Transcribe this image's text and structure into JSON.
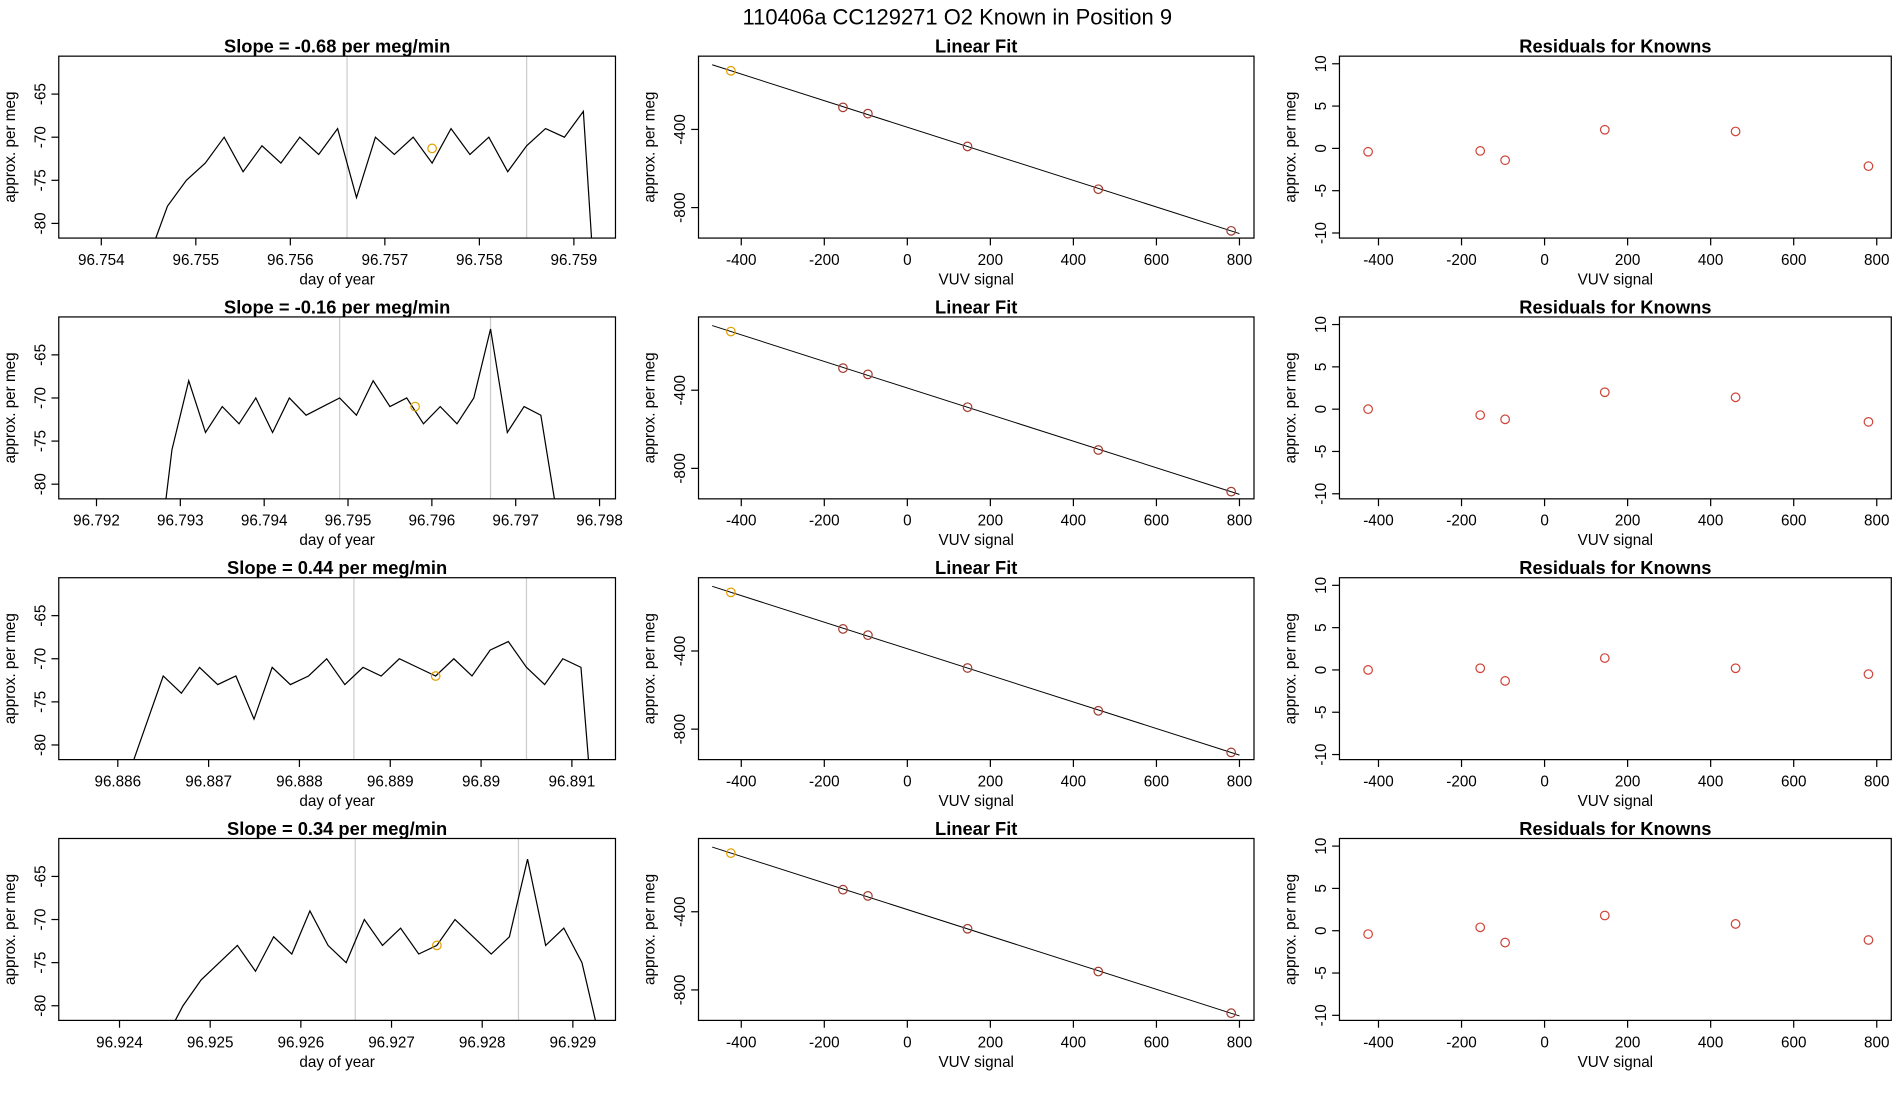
{
  "title": "110406a      CC129271    O2 Known in Position  9",
  "chart_data": [
    {
      "type": "line",
      "title": "Slope =  -0.68  per meg/min",
      "xlabel": "day of year",
      "ylabel": "approx. per meg",
      "x": [
        96.7545,
        96.7547,
        96.7549,
        96.7551,
        96.7553,
        96.7555,
        96.7557,
        96.7559,
        96.7561,
        96.7563,
        96.7565,
        96.7567,
        96.7569,
        96.7571,
        96.7573,
        96.7575,
        96.7577,
        96.7579,
        96.7581,
        96.7583,
        96.7585,
        96.7587,
        96.7589,
        96.7591,
        96.7592
      ],
      "values": [
        -84,
        -78,
        -75,
        -73,
        -70,
        -74,
        -71,
        -73,
        -70,
        -72,
        -69,
        -77,
        -70,
        -72,
        -70,
        -73,
        -69,
        -72,
        -70,
        -74,
        -71,
        -69,
        -70,
        -67,
        -84
      ],
      "color": "#000000",
      "xlim": [
        96.75355,
        96.75944
      ],
      "xticks": [
        96.754,
        96.755,
        96.756,
        96.757,
        96.758,
        96.759
      ],
      "ylim": [
        -81.7,
        -60.6
      ],
      "yticks": [
        -80,
        -75,
        -70,
        -65
      ],
      "vlines": [
        96.7566,
        96.7585
      ],
      "vline_color": "#cccccc",
      "highlight": {
        "x": 96.7575,
        "y": -71.3,
        "color": "#e69f00"
      }
    },
    {
      "type": "scatter",
      "title": "Linear Fit",
      "xlabel": "VUV signal",
      "ylabel": "approx. per meg",
      "x": [
        -425,
        -155,
        -95,
        145,
        460,
        780
      ],
      "values": [
        -100,
        -287,
        -319,
        -487,
        -706,
        -919
      ],
      "colors": [
        "#e69f00",
        "#a33b2f",
        "#a33b2f",
        "#a33b2f",
        "#a33b2f",
        "#a33b2f"
      ],
      "fit_line": {
        "x": [
          -470,
          800
        ],
        "y": [
          -69,
          -933
        ]
      },
      "xlim": [
        -503,
        835
      ],
      "xticks": [
        -400,
        -200,
        0,
        200,
        400,
        600,
        800
      ],
      "ylim": [
        -956,
        -25
      ],
      "yticks": [
        -800,
        -400
      ]
    },
    {
      "type": "scatter",
      "title": "Residuals for Knowns",
      "xlabel": "VUV signal",
      "ylabel": "approx. per meg",
      "x": [
        -425,
        -155,
        -95,
        145,
        460,
        780
      ],
      "values": [
        -0.4,
        -0.3,
        -1.4,
        2.2,
        2.0,
        -2.1
      ],
      "color": "#d0453a",
      "xlim": [
        -494,
        835
      ],
      "xticks": [
        -400,
        -200,
        0,
        200,
        400,
        600,
        800
      ],
      "ylim": [
        -10.6,
        10.9
      ],
      "yticks": [
        -10,
        -5,
        0,
        5,
        10
      ]
    },
    {
      "type": "line",
      "title": "Slope =  -0.16  per meg/min",
      "xlabel": "day of year",
      "ylabel": "approx. per meg",
      "x": [
        96.7928,
        96.7929,
        96.7931,
        96.7933,
        96.7935,
        96.7937,
        96.7939,
        96.7941,
        96.7943,
        96.7945,
        96.7947,
        96.7949,
        96.7951,
        96.7953,
        96.7955,
        96.7957,
        96.7959,
        96.7961,
        96.7963,
        96.7965,
        96.7967,
        96.7969,
        96.7971,
        96.7973,
        96.7975
      ],
      "values": [
        -84,
        -76,
        -68,
        -74,
        -71,
        -73,
        -70,
        -74,
        -70,
        -72,
        -71,
        -70,
        -72,
        -68,
        -71,
        -70,
        -73,
        -71,
        -73,
        -70,
        -62,
        -74,
        -71,
        -72,
        -84
      ],
      "color": "#000000",
      "xlim": [
        96.79155,
        96.79819
      ],
      "xticks": [
        96.792,
        96.793,
        96.794,
        96.795,
        96.796,
        96.797,
        96.798
      ],
      "ylim": [
        -81.7,
        -60.6
      ],
      "yticks": [
        -80,
        -75,
        -70,
        -65
      ],
      "vlines": [
        96.7949,
        96.7967
      ],
      "vline_color": "#cccccc",
      "highlight": {
        "x": 96.7958,
        "y": -71,
        "color": "#e69f00"
      }
    },
    {
      "type": "scatter",
      "title": "Linear Fit",
      "xlabel": "VUV signal",
      "ylabel": "approx. per meg",
      "x": [
        -425,
        -155,
        -95,
        145,
        460,
        780
      ],
      "values": [
        -100,
        -287,
        -319,
        -487,
        -706,
        -919
      ],
      "colors": [
        "#e69f00",
        "#a33b2f",
        "#a33b2f",
        "#a33b2f",
        "#a33b2f",
        "#a33b2f"
      ],
      "fit_line": {
        "x": [
          -470,
          800
        ],
        "y": [
          -69,
          -933
        ]
      },
      "xlim": [
        -503,
        835
      ],
      "xticks": [
        -400,
        -200,
        0,
        200,
        400,
        600,
        800
      ],
      "ylim": [
        -956,
        -25
      ],
      "yticks": [
        -800,
        -400
      ]
    },
    {
      "type": "scatter",
      "title": "Residuals for Knowns",
      "xlabel": "VUV signal",
      "ylabel": "approx. per meg",
      "x": [
        -425,
        -155,
        -95,
        145,
        460,
        780
      ],
      "values": [
        0,
        -0.7,
        -1.2,
        2.0,
        1.4,
        -1.5
      ],
      "color": "#d0453a",
      "xlim": [
        -494,
        835
      ],
      "xticks": [
        -400,
        -200,
        0,
        200,
        400,
        600,
        800
      ],
      "ylim": [
        -10.6,
        10.9
      ],
      "yticks": [
        -10,
        -5,
        0,
        5,
        10
      ]
    },
    {
      "type": "line",
      "title": "Slope =  0.44  per meg/min",
      "xlabel": "day of year",
      "ylabel": "approx. per meg",
      "x": [
        96.8861,
        96.8863,
        96.8865,
        96.8867,
        96.8869,
        96.8871,
        96.8873,
        96.8875,
        96.8877,
        96.8879,
        96.8881,
        96.8883,
        96.8885,
        96.8887,
        96.8889,
        96.8891,
        96.8893,
        96.8895,
        96.8897,
        96.8899,
        96.8901,
        96.8903,
        96.8905,
        96.8907,
        96.8909,
        96.8911,
        96.8912
      ],
      "values": [
        -84,
        -78,
        -72,
        -74,
        -71,
        -73,
        -72,
        -77,
        -71,
        -73,
        -72,
        -70,
        -73,
        -71,
        -72,
        -70,
        -71,
        -72,
        -70,
        -72,
        -69,
        -68,
        -71,
        -73,
        -70,
        -71,
        -84
      ],
      "color": "#000000",
      "xlim": [
        96.88535,
        96.89148
      ],
      "xticks": [
        96.886,
        96.887,
        96.888,
        96.889,
        96.89,
        96.891
      ],
      "ylim": [
        -81.7,
        -60.6
      ],
      "yticks": [
        -80,
        -75,
        -70,
        -65
      ],
      "vlines": [
        96.8886,
        96.8905
      ],
      "vline_color": "#cccccc",
      "highlight": {
        "x": 96.8895,
        "y": -72,
        "color": "#e69f00"
      }
    },
    {
      "type": "scatter",
      "title": "Linear Fit",
      "xlabel": "VUV signal",
      "ylabel": "approx. per meg",
      "x": [
        -425,
        -155,
        -95,
        145,
        460,
        780
      ],
      "values": [
        -100,
        -287,
        -319,
        -487,
        -706,
        -919
      ],
      "colors": [
        "#e69f00",
        "#a33b2f",
        "#a33b2f",
        "#a33b2f",
        "#a33b2f",
        "#a33b2f"
      ],
      "fit_line": {
        "x": [
          -470,
          800
        ],
        "y": [
          -69,
          -933
        ]
      },
      "xlim": [
        -503,
        835
      ],
      "xticks": [
        -400,
        -200,
        0,
        200,
        400,
        600,
        800
      ],
      "ylim": [
        -956,
        -25
      ],
      "yticks": [
        -800,
        -400
      ]
    },
    {
      "type": "scatter",
      "title": "Residuals for Knowns",
      "xlabel": "VUV signal",
      "ylabel": "approx. per meg",
      "x": [
        -425,
        -155,
        -95,
        145,
        460,
        780
      ],
      "values": [
        0,
        0.2,
        -1.3,
        1.4,
        0.2,
        -0.5
      ],
      "color": "#d0453a",
      "xlim": [
        -494,
        835
      ],
      "xticks": [
        -400,
        -200,
        0,
        200,
        400,
        600,
        800
      ],
      "ylim": [
        -10.6,
        10.9
      ],
      "yticks": [
        -10,
        -5,
        0,
        5,
        10
      ]
    },
    {
      "type": "line",
      "title": "Slope =  0.34  per meg/min",
      "xlabel": "day of year",
      "ylabel": "approx. per meg",
      "x": [
        96.9245,
        96.9247,
        96.9249,
        96.9251,
        96.9253,
        96.9255,
        96.9257,
        96.9259,
        96.9261,
        96.9263,
        96.9265,
        96.9267,
        96.9269,
        96.9271,
        96.9273,
        96.9275,
        96.9277,
        96.9279,
        96.9281,
        96.9283,
        96.9285,
        96.9287,
        96.9289,
        96.9291,
        96.9293
      ],
      "values": [
        -84,
        -80,
        -77,
        -75,
        -73,
        -76,
        -72,
        -74,
        -69,
        -73,
        -75,
        -70,
        -73,
        -71,
        -74,
        -73,
        -70,
        -72,
        -74,
        -72,
        -63,
        -73,
        -71,
        -75,
        -84
      ],
      "color": "#000000",
      "xlim": [
        96.92333,
        96.92947
      ],
      "xticks": [
        96.924,
        96.925,
        96.926,
        96.927,
        96.928,
        96.929
      ],
      "ylim": [
        -81.7,
        -60.6
      ],
      "yticks": [
        -80,
        -75,
        -70,
        -65
      ],
      "vlines": [
        96.9266,
        96.9284
      ],
      "vline_color": "#cccccc",
      "highlight": {
        "x": 96.9275,
        "y": -73,
        "color": "#e69f00"
      }
    },
    {
      "type": "scatter",
      "title": "Linear Fit",
      "xlabel": "VUV signal",
      "ylabel": "approx. per meg",
      "x": [
        -425,
        -155,
        -95,
        145,
        460,
        780
      ],
      "values": [
        -100,
        -287,
        -319,
        -487,
        -706,
        -919
      ],
      "colors": [
        "#e69f00",
        "#a33b2f",
        "#a33b2f",
        "#a33b2f",
        "#a33b2f",
        "#a33b2f"
      ],
      "fit_line": {
        "x": [
          -470,
          800
        ],
        "y": [
          -69,
          -933
        ]
      },
      "xlim": [
        -503,
        835
      ],
      "xticks": [
        -400,
        -200,
        0,
        200,
        400,
        600,
        800
      ],
      "ylim": [
        -956,
        -25
      ],
      "yticks": [
        -800,
        -400
      ]
    },
    {
      "type": "scatter",
      "title": "Residuals for Knowns",
      "xlabel": "VUV signal",
      "ylabel": "approx. per meg",
      "x": [
        -425,
        -155,
        -95,
        145,
        460,
        780
      ],
      "values": [
        -0.4,
        0.4,
        -1.4,
        1.8,
        0.8,
        -1.1
      ],
      "color": "#d0453a",
      "xlim": [
        -494,
        835
      ],
      "xticks": [
        -400,
        -200,
        0,
        200,
        400,
        600,
        800
      ],
      "ylim": [
        -10.6,
        10.9
      ],
      "yticks": [
        -10,
        -5,
        0,
        5,
        10
      ]
    }
  ]
}
